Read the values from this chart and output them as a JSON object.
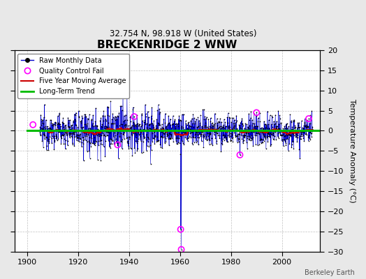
{
  "title": "BRECKENRIDGE 2 WNW",
  "subtitle": "32.754 N, 98.918 W (United States)",
  "ylabel": "Temperature Anomaly (°C)",
  "ylim": [
    -30,
    20
  ],
  "xlim": [
    1895,
    2015
  ],
  "yticks": [
    -30,
    -25,
    -20,
    -15,
    -10,
    -5,
    0,
    5,
    10,
    15,
    20
  ],
  "xticks": [
    1900,
    1920,
    1940,
    1960,
    1980,
    2000
  ],
  "background_color": "#e8e8e8",
  "plot_bg_color": "#ffffff",
  "raw_line_color": "#0000cc",
  "raw_dot_color": "#000000",
  "moving_avg_color": "#cc0000",
  "trend_color": "#00bb00",
  "qc_fail_color": "#ff00ff",
  "watermark": "Berkeley Earth",
  "seed": 12345,
  "years_start": 1905,
  "years_end": 2012,
  "qc_x": [
    1902.3,
    1935.5,
    1942.0,
    1960.25,
    1960.5,
    1983.5,
    1990.0,
    2010.5
  ],
  "qc_y": [
    1.5,
    -3.5,
    3.5,
    -24.5,
    -29.5,
    -6.0,
    4.5,
    3.0
  ]
}
